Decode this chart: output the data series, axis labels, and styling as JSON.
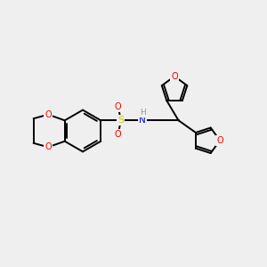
{
  "bg_color": "#efefef",
  "atom_colors": {
    "O": "#ff0000",
    "N": "#0000cc",
    "S": "#cccc00",
    "C": "#000000",
    "H": "#7fa0a0"
  },
  "bond_color": "#000000",
  "figsize": [
    3.0,
    3.0
  ],
  "dpi": 100
}
